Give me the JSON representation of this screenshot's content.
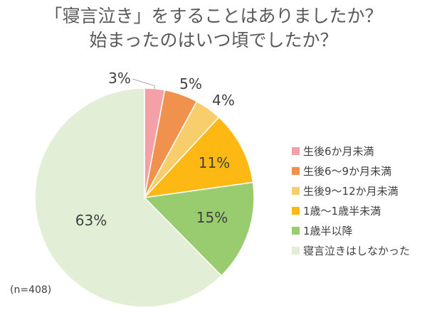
{
  "chart_data": {
    "type": "pie",
    "title_lines": [
      "「寝言泣き」をすることはありましたか？",
      "始まったのはいつ頃でしたか？"
    ],
    "categories": [
      "生後6か月未満",
      "生後6〜9か月未満",
      "生後9〜12か月未満",
      "1歳〜1歳半未満",
      "1歳半以降",
      "寝言泣きはしなかった"
    ],
    "values": [
      3,
      5,
      4,
      11,
      15,
      63
    ],
    "value_labels": [
      "3%",
      "5%",
      "4%",
      "11%",
      "15%",
      "63%"
    ],
    "colors": [
      "#F4A0A7",
      "#F0914E",
      "#F7CE6B",
      "#FDB813",
      "#98CC6F",
      "#E3EED6"
    ],
    "legend_position": "right",
    "note": "(n=408)"
  }
}
